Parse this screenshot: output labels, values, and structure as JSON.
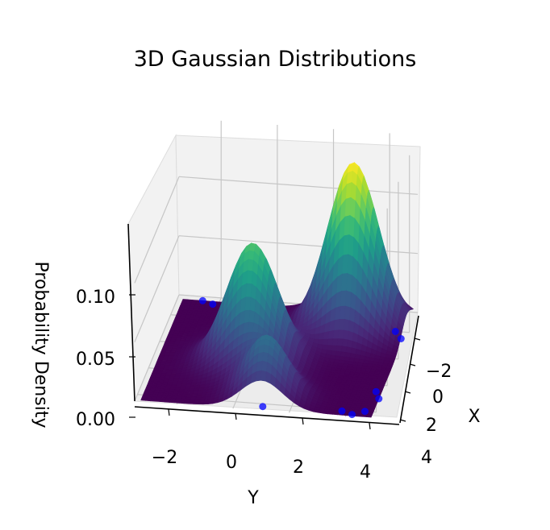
{
  "chart_data": {
    "type": "surface3d",
    "title": "3D Gaussian Distributions",
    "xlabel": "X",
    "ylabel": "Y",
    "zlabel": "Probability Density",
    "colormap": "viridis",
    "grid": true,
    "axis_ranges": {
      "x": [
        -3.5,
        4.5
      ],
      "y": [
        -3.5,
        5
      ],
      "z": [
        0,
        0.15
      ]
    },
    "ticks": {
      "x": [
        "−2",
        "0",
        "2",
        "4"
      ],
      "y": [
        "−2",
        "0",
        "2",
        "4"
      ],
      "z": [
        "0.00",
        "0.05",
        "0.10"
      ]
    },
    "x_tick_values": [
      -2,
      0,
      2,
      4
    ],
    "y_tick_values": [
      -2,
      0,
      2,
      4
    ],
    "z_tick_values": [
      0,
      0.05,
      0.1
    ],
    "series": [
      {
        "type": "surface",
        "components": [
          {
            "mean_x": -2,
            "mean_y": 3,
            "std": 0.9,
            "peak": 0.14
          },
          {
            "mean_x": 1,
            "mean_y": 0,
            "std": 0.9,
            "peak": 0.1
          },
          {
            "mean_x": 3.5,
            "mean_y": 1,
            "std": 0.75,
            "peak": 0.05
          }
        ]
      },
      {
        "type": "scatter",
        "color": "#0000ff",
        "points": [
          {
            "x": 4.0,
            "y": 4.6
          },
          {
            "x": 4.3,
            "y": 4.2
          },
          {
            "x": 4.1,
            "y": 3.8
          },
          {
            "x": -1.5,
            "y": 4.8
          },
          {
            "x": -2.0,
            "y": 4.5
          },
          {
            "x": -3.2,
            "y": -2.6
          },
          {
            "x": -3.0,
            "y": -2.2
          },
          {
            "x": 2.5,
            "y": 4.7
          },
          {
            "x": 3.0,
            "y": 4.9
          },
          {
            "x": 4.2,
            "y": 1.0
          }
        ]
      }
    ]
  }
}
